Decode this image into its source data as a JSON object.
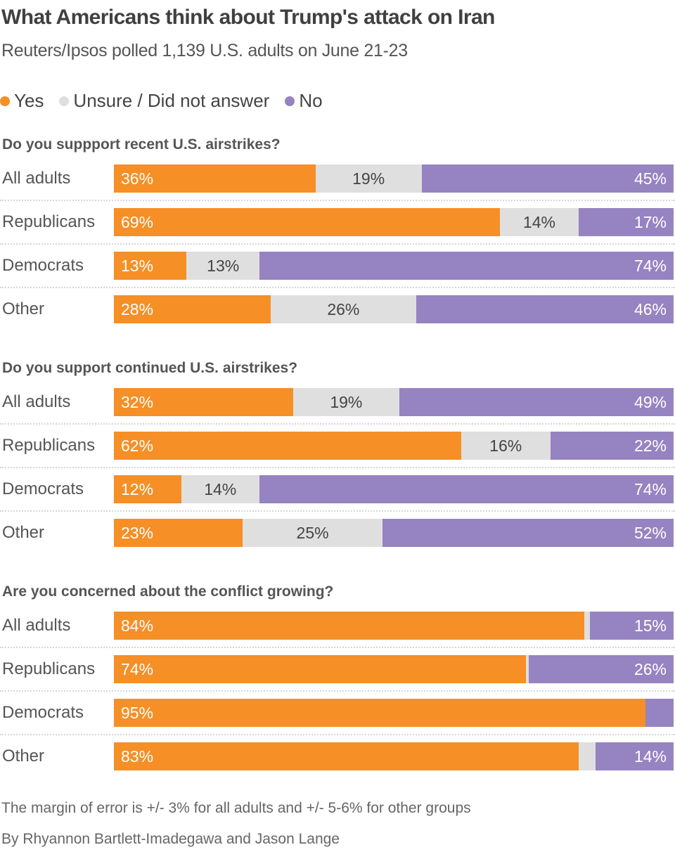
{
  "header": {
    "title": "What Americans think about Trump's attack on Iran",
    "subtitle": "Reuters/Ipsos polled 1,139 U.S. adults on June 21-23"
  },
  "legend": [
    {
      "key": "yes",
      "label": "Yes",
      "color": "#f58f26"
    },
    {
      "key": "unsure",
      "label": "Unsure / Did not answer",
      "color": "#dfdfdf"
    },
    {
      "key": "no",
      "label": "No",
      "color": "#9683c1"
    }
  ],
  "footer": {
    "note": "The margin of error is +/- 3% for all adults and +/- 5-6% for other groups",
    "byline": "By Rhyannon Bartlett-Imadegawa and Jason Lange"
  },
  "chart_data": {
    "type": "bar",
    "orientation": "horizontal",
    "stacked": true,
    "normalized_to": 100,
    "title": "What Americans think about Trump's attack on Iran",
    "subtitle": "Reuters/Ipsos polled 1,139 U.S. adults on June 21-23",
    "legend_position": "top-left",
    "series_names": [
      "Yes",
      "Unsure / Did not answer",
      "No"
    ],
    "colors": {
      "yes": "#f58f26",
      "unsure": "#dfdfdf",
      "no": "#9683c1"
    },
    "panels": [
      {
        "question": "Do you suppport recent U.S. airstrikes?",
        "categories": [
          "All adults",
          "Republicans",
          "Democrats",
          "Other"
        ],
        "rows": [
          {
            "yes": 36,
            "unsure": 19,
            "no": 45,
            "labels": {
              "yes": "36%",
              "unsure": "19%",
              "no": "45%"
            }
          },
          {
            "yes": 69,
            "unsure": 14,
            "no": 17,
            "labels": {
              "yes": "69%",
              "unsure": "14%",
              "no": "17%"
            }
          },
          {
            "yes": 13,
            "unsure": 13,
            "no": 74,
            "labels": {
              "yes": "13%",
              "unsure": "13%",
              "no": "74%"
            }
          },
          {
            "yes": 28,
            "unsure": 26,
            "no": 46,
            "labels": {
              "yes": "28%",
              "unsure": "26%",
              "no": "46%"
            }
          }
        ]
      },
      {
        "question": "Do you support continued U.S. airstrikes?",
        "categories": [
          "All adults",
          "Republicans",
          "Democrats",
          "Other"
        ],
        "rows": [
          {
            "yes": 32,
            "unsure": 19,
            "no": 49,
            "labels": {
              "yes": "32%",
              "unsure": "19%",
              "no": "49%"
            }
          },
          {
            "yes": 62,
            "unsure": 16,
            "no": 22,
            "labels": {
              "yes": "62%",
              "unsure": "16%",
              "no": "22%"
            }
          },
          {
            "yes": 12,
            "unsure": 14,
            "no": 74,
            "labels": {
              "yes": "12%",
              "unsure": "14%",
              "no": "74%"
            }
          },
          {
            "yes": 23,
            "unsure": 25,
            "no": 52,
            "labels": {
              "yes": "23%",
              "unsure": "25%",
              "no": "52%"
            }
          }
        ]
      },
      {
        "question": "Are you concerned about the conflict growing?",
        "categories": [
          "All adults",
          "Republicans",
          "Democrats",
          "Other"
        ],
        "rows": [
          {
            "yes": 84,
            "unsure": 1,
            "no": 15,
            "labels": {
              "yes": "84%",
              "unsure": "",
              "no": "15%"
            }
          },
          {
            "yes": 74,
            "unsure": 0.5,
            "no": 26,
            "labels": {
              "yes": "74%",
              "unsure": "",
              "no": "26%"
            }
          },
          {
            "yes": 95,
            "unsure": 0,
            "no": 5,
            "labels": {
              "yes": "95%",
              "unsure": "",
              "no": ""
            }
          },
          {
            "yes": 83,
            "unsure": 3,
            "no": 14,
            "labels": {
              "yes": "83%",
              "unsure": "",
              "no": "14%"
            }
          }
        ]
      }
    ]
  }
}
